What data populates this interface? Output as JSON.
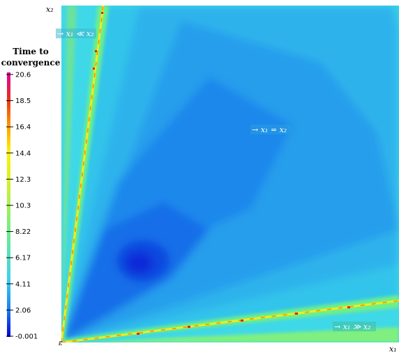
{
  "chart_data": {
    "type": "heatmap",
    "title": "",
    "xlabel": "x₁",
    "ylabel": "x₂",
    "colorbar": {
      "title_lines": [
        "Time to",
        "convergence"
      ],
      "ticks": [
        "20.6",
        "18.5",
        "16.4",
        "14.4",
        "12.3",
        "10.3",
        "8.22",
        "6.17",
        "4.11",
        "2.06",
        "-0.001"
      ],
      "range": [
        -0.001,
        20.6
      ],
      "colors": [
        "#0000d8",
        "#1a7df0",
        "#3fd0ee",
        "#6fef88",
        "#c6f03a",
        "#fff200",
        "#ff9a00",
        "#e83018",
        "#e0008a",
        "#f070f0"
      ]
    },
    "grid": false,
    "legend": "none",
    "annotations": [
      {
        "prefix": "→ ",
        "var1": "x₁",
        "rel": " ≪ ",
        "var2": "x₂"
      },
      {
        "prefix": "→ ",
        "var1": "x₁",
        "rel": " = ",
        "var2": "x₂"
      },
      {
        "prefix": "→ ",
        "var1": "x₁",
        "rel": " ≫ ",
        "var2": "x₂"
      }
    ],
    "features": {
      "minimum_region": {
        "x_frac": 0.2,
        "y_frac": 0.24,
        "value": 0.0
      },
      "ridges": [
        {
          "name": "upper",
          "slope_y_over_x": 8.3,
          "peak_value": 20.6
        },
        {
          "name": "lower",
          "slope_y_over_x": 0.123,
          "peak_value": 20.6
        }
      ]
    }
  }
}
